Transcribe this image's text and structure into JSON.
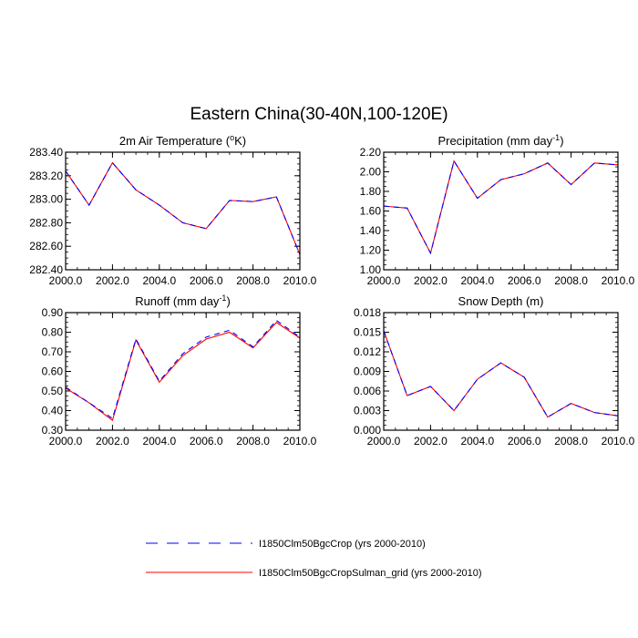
{
  "figure": {
    "title": "Eastern China(30-40N,100-120E)"
  },
  "legend": {
    "placement": "bottom",
    "entries": [
      {
        "label": "I1850Clm50BgcCrop (yrs 2000-2010)",
        "color": "#0000ff",
        "style": "dashed"
      },
      {
        "label": "I1850Clm50BgcCropSulman_grid (yrs 2000-2010)",
        "color": "#ff0000",
        "style": "solid"
      }
    ]
  },
  "chart_data": [
    {
      "type": "line",
      "title": "2m Air Temperature (°K)",
      "title_parts": {
        "pre": "2m Air Temperature (",
        "sup": "o",
        "post": "K)"
      },
      "x": [
        2000,
        2001,
        2002,
        2003,
        2004,
        2005,
        2006,
        2007,
        2008,
        2009,
        2010
      ],
      "xlim": [
        2000,
        2010
      ],
      "ylim": [
        282.4,
        283.4
      ],
      "xticks": [
        2000,
        2002,
        2004,
        2006,
        2008,
        2010
      ],
      "xtick_labels": [
        "2000.0",
        "2002.0",
        "2004.0",
        "2006.0",
        "2008.0",
        "2010.0"
      ],
      "yticks": [
        282.4,
        282.6,
        282.8,
        283.0,
        283.2,
        283.4
      ],
      "ytick_labels": [
        "282.40",
        "282.60",
        "282.80",
        "283.00",
        "283.20",
        "283.40"
      ],
      "yminor": 0.05,
      "series": [
        {
          "values": [
            283.24,
            282.95,
            283.31,
            283.08,
            282.95,
            282.8,
            282.75,
            282.99,
            282.98,
            283.02,
            282.53
          ]
        },
        {
          "values": [
            283.24,
            282.95,
            283.31,
            283.08,
            282.95,
            282.8,
            282.75,
            282.99,
            282.98,
            283.02,
            282.53
          ]
        }
      ]
    },
    {
      "type": "line",
      "title": "Precipitation (mm day-1)",
      "title_parts": {
        "pre": "Precipitation (mm day",
        "sup": "-1",
        "post": ")"
      },
      "x": [
        2000,
        2001,
        2002,
        2003,
        2004,
        2005,
        2006,
        2007,
        2008,
        2009,
        2010
      ],
      "xlim": [
        2000,
        2010
      ],
      "ylim": [
        1.0,
        2.2
      ],
      "xticks": [
        2000,
        2002,
        2004,
        2006,
        2008,
        2010
      ],
      "xtick_labels": [
        "2000.0",
        "2002.0",
        "2004.0",
        "2006.0",
        "2008.0",
        "2010.0"
      ],
      "yticks": [
        1.0,
        1.2,
        1.4,
        1.6,
        1.8,
        2.0,
        2.2
      ],
      "ytick_labels": [
        "1.00",
        "1.20",
        "1.40",
        "1.60",
        "1.80",
        "2.00",
        "2.20"
      ],
      "yminor": 0.05,
      "series": [
        {
          "values": [
            1.65,
            1.63,
            1.17,
            2.11,
            1.73,
            1.92,
            1.98,
            2.09,
            1.87,
            2.09,
            2.07
          ]
        },
        {
          "values": [
            1.65,
            1.63,
            1.17,
            2.11,
            1.73,
            1.92,
            1.98,
            2.09,
            1.87,
            2.09,
            2.07
          ]
        }
      ]
    },
    {
      "type": "line",
      "title": "Runoff (mm day-1)",
      "title_parts": {
        "pre": "Runoff (mm day",
        "sup": "-1",
        "post": ")"
      },
      "x": [
        2000,
        2001,
        2002,
        2003,
        2004,
        2005,
        2006,
        2007,
        2008,
        2009,
        2010
      ],
      "xlim": [
        2000,
        2010
      ],
      "ylim": [
        0.3,
        0.9
      ],
      "xticks": [
        2000,
        2002,
        2004,
        2006,
        2008,
        2010
      ],
      "xtick_labels": [
        "2000.0",
        "2002.0",
        "2004.0",
        "2006.0",
        "2008.0",
        "2010.0"
      ],
      "yticks": [
        0.3,
        0.4,
        0.5,
        0.6,
        0.7,
        0.8,
        0.9
      ],
      "ytick_labels": [
        "0.30",
        "0.40",
        "0.50",
        "0.60",
        "0.70",
        "0.80",
        "0.90"
      ],
      "yminor": 0.025,
      "series": [
        {
          "values": [
            0.52,
            0.44,
            0.36,
            0.765,
            0.55,
            0.69,
            0.775,
            0.81,
            0.725,
            0.86,
            0.775
          ]
        },
        {
          "values": [
            0.515,
            0.44,
            0.35,
            0.76,
            0.545,
            0.68,
            0.765,
            0.8,
            0.72,
            0.85,
            0.77
          ]
        }
      ]
    },
    {
      "type": "line",
      "title": "Snow Depth (m)",
      "title_parts": {
        "pre": "Snow Depth (m)",
        "sup": "",
        "post": ""
      },
      "x": [
        2000,
        2001,
        2002,
        2003,
        2004,
        2005,
        2006,
        2007,
        2008,
        2009,
        2010
      ],
      "xlim": [
        2000,
        2010
      ],
      "ylim": [
        0.0,
        0.018
      ],
      "xticks": [
        2000,
        2002,
        2004,
        2006,
        2008,
        2010
      ],
      "xtick_labels": [
        "2000.0",
        "2002.0",
        "2004.0",
        "2006.0",
        "2008.0",
        "2010.0"
      ],
      "yticks": [
        0.0,
        0.003,
        0.006,
        0.009,
        0.012,
        0.015,
        0.018
      ],
      "ytick_labels": [
        "0.000",
        "0.003",
        "0.006",
        "0.009",
        "0.012",
        "0.015",
        "0.018"
      ],
      "yminor": 0.00075,
      "series": [
        {
          "values": [
            0.0152,
            0.0053,
            0.0067,
            0.003,
            0.0078,
            0.0103,
            0.0081,
            0.002,
            0.0041,
            0.0027,
            0.0022
          ]
        },
        {
          "values": [
            0.0152,
            0.0053,
            0.0067,
            0.003,
            0.0078,
            0.0103,
            0.0081,
            0.002,
            0.0041,
            0.0027,
            0.0022
          ]
        }
      ]
    }
  ]
}
